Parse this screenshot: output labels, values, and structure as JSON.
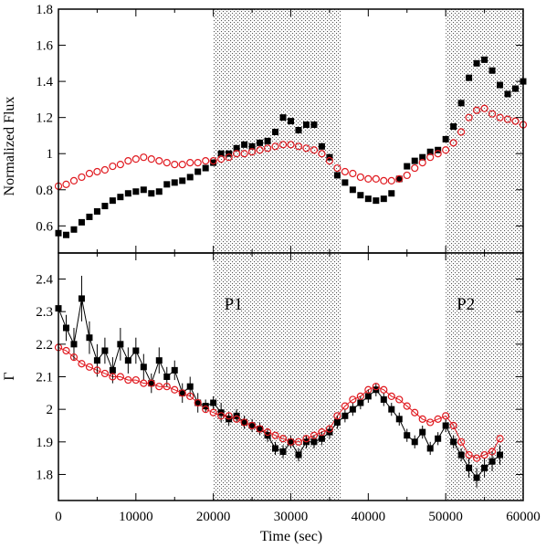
{
  "chart_data": [
    {
      "type": "scatter",
      "panel": "top",
      "ylabel": "Normalized Flux",
      "xlabel": "",
      "xlim": [
        0,
        60000
      ],
      "ylim": [
        0.45,
        1.8
      ],
      "xticks": [
        0,
        10000,
        20000,
        30000,
        40000,
        50000,
        60000
      ],
      "yticks": [
        0.6,
        0.8,
        1,
        1.2,
        1.4,
        1.6,
        1.8
      ],
      "ytick_labels": [
        "0.6",
        "0.8",
        "1",
        "1.2",
        "1.4",
        "1.6",
        "1.8"
      ],
      "shaded_regions": [
        {
          "x": [
            20000,
            36500
          ],
          "label": ""
        },
        {
          "x": [
            50000,
            60000
          ],
          "label": ""
        }
      ],
      "series": [
        {
          "marker": "filled-square",
          "color": "#000000",
          "x": [
            0,
            1000,
            2000,
            3000,
            4000,
            5000,
            6000,
            7000,
            8000,
            9000,
            10000,
            11000,
            12000,
            13000,
            14000,
            15000,
            16000,
            17000,
            18000,
            19000,
            20000,
            21000,
            22000,
            23000,
            24000,
            25000,
            26000,
            27000,
            28000,
            29000,
            30000,
            31000,
            32000,
            33000,
            34000,
            35000,
            36000,
            37000,
            38000,
            39000,
            40000,
            41000,
            42000,
            43000,
            44000,
            45000,
            46000,
            47000,
            48000,
            49000,
            50000,
            51000,
            52000,
            53000,
            54000,
            55000,
            56000,
            57000,
            58000,
            59000,
            60000
          ],
          "y": [
            0.56,
            0.55,
            0.58,
            0.62,
            0.65,
            0.68,
            0.71,
            0.74,
            0.76,
            0.78,
            0.79,
            0.8,
            0.78,
            0.79,
            0.83,
            0.84,
            0.85,
            0.87,
            0.9,
            0.92,
            0.95,
            1.0,
            1.0,
            1.03,
            1.05,
            1.04,
            1.06,
            1.07,
            1.12,
            1.2,
            1.18,
            1.13,
            1.16,
            1.16,
            1.04,
            0.98,
            0.88,
            0.84,
            0.8,
            0.77,
            0.75,
            0.74,
            0.75,
            0.78,
            0.86,
            0.93,
            0.96,
            0.98,
            1.01,
            1.02,
            1.08,
            1.15,
            1.28,
            1.42,
            1.5,
            1.52,
            1.46,
            1.38,
            1.33,
            1.36,
            1.4
          ]
        },
        {
          "marker": "open-circle",
          "color": "#e0191f",
          "x": [
            0,
            1000,
            2000,
            3000,
            4000,
            5000,
            6000,
            7000,
            8000,
            9000,
            10000,
            11000,
            12000,
            13000,
            14000,
            15000,
            16000,
            17000,
            18000,
            19000,
            20000,
            21000,
            22000,
            23000,
            24000,
            25000,
            26000,
            27000,
            28000,
            29000,
            30000,
            31000,
            32000,
            33000,
            34000,
            35000,
            36000,
            37000,
            38000,
            39000,
            40000,
            41000,
            42000,
            43000,
            44000,
            45000,
            46000,
            47000,
            48000,
            49000,
            50000,
            51000,
            52000,
            53000,
            54000,
            55000,
            56000,
            57000,
            58000,
            59000,
            60000
          ],
          "y": [
            0.82,
            0.83,
            0.85,
            0.87,
            0.89,
            0.9,
            0.91,
            0.93,
            0.94,
            0.96,
            0.97,
            0.98,
            0.97,
            0.96,
            0.95,
            0.94,
            0.94,
            0.95,
            0.95,
            0.96,
            0.96,
            0.97,
            0.98,
            1.0,
            1.0,
            1.01,
            1.02,
            1.03,
            1.04,
            1.05,
            1.05,
            1.04,
            1.03,
            1.02,
            1.0,
            0.96,
            0.92,
            0.9,
            0.89,
            0.87,
            0.86,
            0.86,
            0.85,
            0.85,
            0.86,
            0.88,
            0.92,
            0.95,
            0.98,
            1.0,
            1.02,
            1.06,
            1.12,
            1.2,
            1.24,
            1.25,
            1.22,
            1.2,
            1.19,
            1.18,
            1.16
          ]
        }
      ]
    },
    {
      "type": "line",
      "panel": "bottom",
      "ylabel": "Γ",
      "xlabel": "Time (sec)",
      "xlim": [
        0,
        60000
      ],
      "ylim": [
        1.72,
        2.48
      ],
      "xticks": [
        0,
        10000,
        20000,
        30000,
        40000,
        50000,
        60000
      ],
      "xtick_labels": [
        "0",
        "10000",
        "20000",
        "30000",
        "40000",
        "50000",
        "60000"
      ],
      "yticks": [
        1.8,
        1.9,
        2.0,
        2.1,
        2.2,
        2.3,
        2.4
      ],
      "ytick_labels": [
        "1.8",
        "1.9",
        "2",
        "2.1",
        "2.2",
        "2.3",
        "2.4"
      ],
      "shaded_regions": [
        {
          "x": [
            20000,
            36500
          ],
          "label": "P1"
        },
        {
          "x": [
            50000,
            60000
          ],
          "label": "P2"
        }
      ],
      "series": [
        {
          "marker": "filled-square",
          "color": "#000000",
          "errorbars": true,
          "x": [
            0,
            1000,
            2000,
            3000,
            4000,
            5000,
            6000,
            7000,
            8000,
            9000,
            10000,
            11000,
            12000,
            13000,
            14000,
            15000,
            16000,
            17000,
            18000,
            19000,
            20000,
            21000,
            22000,
            23000,
            24000,
            25000,
            26000,
            27000,
            28000,
            29000,
            30000,
            31000,
            32000,
            33000,
            34000,
            35000,
            36000,
            37000,
            38000,
            39000,
            40000,
            41000,
            42000,
            43000,
            44000,
            45000,
            46000,
            47000,
            48000,
            49000,
            50000,
            51000,
            52000,
            53000,
            54000,
            55000,
            56000,
            57000
          ],
          "y": [
            2.31,
            2.25,
            2.2,
            2.34,
            2.22,
            2.15,
            2.18,
            2.12,
            2.2,
            2.15,
            2.18,
            2.13,
            2.08,
            2.15,
            2.1,
            2.12,
            2.05,
            2.07,
            2.02,
            2.01,
            2.02,
            1.99,
            1.97,
            1.98,
            1.96,
            1.95,
            1.94,
            1.92,
            1.88,
            1.87,
            1.9,
            1.86,
            1.9,
            1.9,
            1.91,
            1.93,
            1.96,
            1.98,
            2.0,
            2.02,
            2.04,
            2.06,
            2.03,
            2.0,
            1.97,
            1.92,
            1.9,
            1.93,
            1.88,
            1.91,
            1.95,
            1.9,
            1.86,
            1.82,
            1.79,
            1.82,
            1.84,
            1.86
          ],
          "err": [
            0.03,
            0.04,
            0.05,
            0.07,
            0.05,
            0.05,
            0.04,
            0.04,
            0.05,
            0.04,
            0.04,
            0.04,
            0.03,
            0.04,
            0.03,
            0.03,
            0.03,
            0.03,
            0.03,
            0.02,
            0.02,
            0.03,
            0.02,
            0.02,
            0.02,
            0.02,
            0.02,
            0.02,
            0.02,
            0.02,
            0.02,
            0.02,
            0.02,
            0.02,
            0.02,
            0.02,
            0.02,
            0.02,
            0.02,
            0.02,
            0.02,
            0.02,
            0.02,
            0.02,
            0.02,
            0.02,
            0.02,
            0.02,
            0.02,
            0.02,
            0.02,
            0.02,
            0.02,
            0.03,
            0.03,
            0.03,
            0.03,
            0.03
          ]
        },
        {
          "marker": "open-circle",
          "color": "#e0191f",
          "x": [
            0,
            1000,
            2000,
            3000,
            4000,
            5000,
            6000,
            7000,
            8000,
            9000,
            10000,
            11000,
            12000,
            13000,
            14000,
            15000,
            16000,
            17000,
            18000,
            19000,
            20000,
            21000,
            22000,
            23000,
            24000,
            25000,
            26000,
            27000,
            28000,
            29000,
            30000,
            31000,
            32000,
            33000,
            34000,
            35000,
            36000,
            37000,
            38000,
            39000,
            40000,
            41000,
            42000,
            43000,
            44000,
            45000,
            46000,
            47000,
            48000,
            49000,
            50000,
            51000,
            52000,
            53000,
            54000,
            55000,
            56000,
            57000
          ],
          "y": [
            2.19,
            2.18,
            2.16,
            2.14,
            2.13,
            2.12,
            2.11,
            2.1,
            2.1,
            2.09,
            2.09,
            2.08,
            2.08,
            2.07,
            2.07,
            2.06,
            2.05,
            2.04,
            2.02,
            2.0,
            1.99,
            1.98,
            1.98,
            1.97,
            1.96,
            1.95,
            1.94,
            1.93,
            1.92,
            1.91,
            1.9,
            1.9,
            1.91,
            1.92,
            1.93,
            1.94,
            1.98,
            2.01,
            2.03,
            2.04,
            2.06,
            2.07,
            2.06,
            2.04,
            2.03,
            2.01,
            1.99,
            1.97,
            1.96,
            1.97,
            1.98,
            1.95,
            1.9,
            1.86,
            1.85,
            1.86,
            1.87,
            1.91
          ]
        }
      ]
    }
  ]
}
